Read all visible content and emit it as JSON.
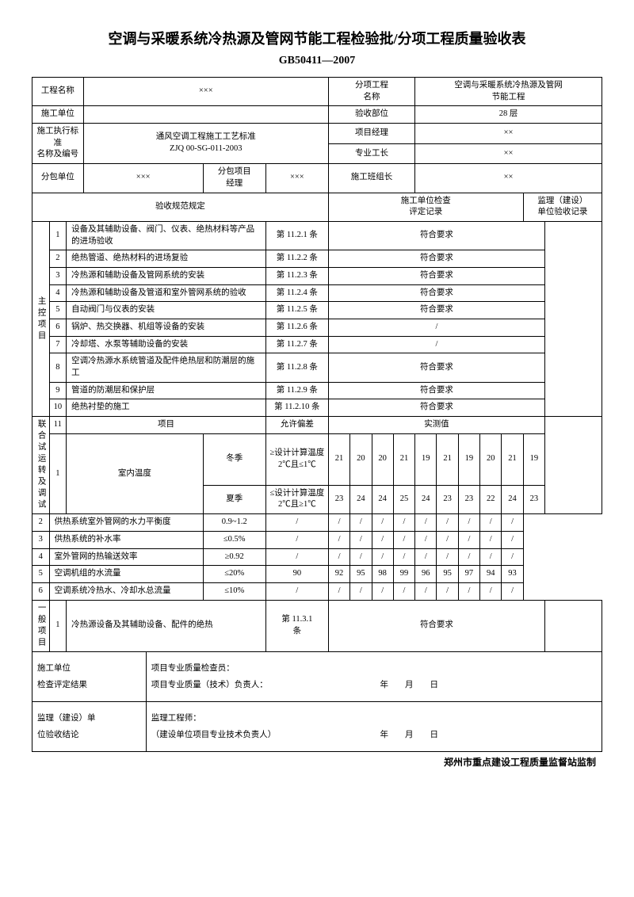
{
  "title": "空调与采暖系统冷热源及管网节能工程检验批/分项工程质量验收表",
  "subtitle": "GB50411—2007",
  "labels": {
    "projectName": "工程名称",
    "subProjectName": "分项工程\n名称",
    "subProjectVal": "空调与采暖系统冷热源及管网\n节能工程",
    "constructor": "施工单位",
    "acceptPart": "验收部位",
    "acceptPartVal": "28 层",
    "standard": "施工执行标准\n名称及编号",
    "standardVal": "通风空调工程施工工艺标准\nZJQ 00-SG-011-2003",
    "pm": "项目经理",
    "foreman": "专业工长",
    "subcontractor": "分包单位",
    "subPM": "分包项目\n经理",
    "teamLeader": "施工班组长",
    "specHeader": "验收规范规定",
    "selfCheck": "施工单位检查\n评定记录",
    "supervCheck": "监理（建设）\n单位验收记录",
    "mainItem": "主控项目",
    "genItem": "一般项目",
    "itemHdr": "项目",
    "tolHdr": "允许偏差",
    "measHdr": "实测值",
    "joint": "联合试运转及调试",
    "winter": "冬季",
    "summer": "夏季",
    "indoorTemp": "室内温度",
    "ok": "符合要求",
    "slash": "/",
    "resultLbl": "施工单位\n检查评定结果",
    "resultTxt": "项目专业质量检查员：\n项目专业质量（技术）负责人：　　　　　　　　　　　　　　年　　月　　日",
    "supervLbl": "监理（建设）单\n位验收结论",
    "supervTxt": "监理工程师：\n（建设单位项目专业技术负责人）　　　　　　　　　　　　　年　　月　　日",
    "footer": "郑州市重点建设工程质量监督站监制",
    "xxx": "×××",
    "xx": "××"
  },
  "rows": [
    {
      "n": "1",
      "desc": "设备及其辅助设备、阀门、仪表、绝热材料等产品的进场验收",
      "ref": "第 11.2.1 条",
      "res": "符合要求"
    },
    {
      "n": "2",
      "desc": "绝热管道、绝热材料的进场复验",
      "ref": "第 11.2.2 条",
      "res": "符合要求"
    },
    {
      "n": "3",
      "desc": "冷热源和辅助设备及管网系统的安装",
      "ref": "第 11.2.3 条",
      "res": "符合要求"
    },
    {
      "n": "4",
      "desc": "冷热源和辅助设备及管道和室外管网系统的验收",
      "ref": "第 11.2.4 条",
      "res": "符合要求"
    },
    {
      "n": "5",
      "desc": "自动阀门与仪表的安装",
      "ref": "第 11.2.5 条",
      "res": "符合要求"
    },
    {
      "n": "6",
      "desc": "锅炉、热交换器、机组等设备的安装",
      "ref": "第 11.2.6 条",
      "res": "/"
    },
    {
      "n": "7",
      "desc": "冷却塔、水泵等辅助设备的安装",
      "ref": "第 11.2.7 条",
      "res": "/"
    },
    {
      "n": "8",
      "desc": "空调冷热源水系统管道及配件绝热层和防潮层的施工",
      "ref": "第 11.2.8 条",
      "res": "符合要求"
    },
    {
      "n": "9",
      "desc": "管道的防潮层和保护层",
      "ref": "第 11.2.9 条",
      "res": "符合要求"
    },
    {
      "n": "10",
      "desc": "绝热衬垫的施工",
      "ref": "第 11.2.10 条",
      "res": "符合要求"
    }
  ],
  "winterTol": "≥设计计算温度 2℃且≤1℃",
  "winterVals": [
    "21",
    "20",
    "20",
    "21",
    "19",
    "21",
    "19",
    "20",
    "21",
    "19"
  ],
  "summerTol": "≤设计计算温度 2℃且≥1℃",
  "summerVals": [
    "23",
    "24",
    "24",
    "25",
    "24",
    "23",
    "23",
    "22",
    "24",
    "23"
  ],
  "measRows": [
    {
      "n": "2",
      "desc": "供热系统室外管网的水力平衡度",
      "tol": "0.9~1.2",
      "v": [
        "/",
        "/",
        "/",
        "/",
        "/",
        "/",
        "/",
        "/",
        "/",
        "/"
      ]
    },
    {
      "n": "3",
      "desc": "供热系统的补水率",
      "tol": "≤0.5%",
      "v": [
        "/",
        "/",
        "/",
        "/",
        "/",
        "/",
        "/",
        "/",
        "/",
        "/"
      ]
    },
    {
      "n": "4",
      "desc": "室外管网的热输送效率",
      "tol": "≥0.92",
      "v": [
        "/",
        "/",
        "/",
        "/",
        "/",
        "/",
        "/",
        "/",
        "/",
        "/"
      ]
    },
    {
      "n": "5",
      "desc": "空调机组的水流量",
      "tol": "≤20%",
      "v": [
        "90",
        "92",
        "95",
        "98",
        "99",
        "96",
        "95",
        "97",
        "94",
        "93"
      ]
    },
    {
      "n": "6",
      "desc": "空调系统冷热水、冷却水总流量",
      "tol": "≤10%",
      "v": [
        "/",
        "/",
        "/",
        "/",
        "/",
        "/",
        "/",
        "/",
        "/",
        "/"
      ]
    }
  ],
  "genRow": {
    "n": "1",
    "desc": "冷热源设备及其辅助设备、配件的绝热",
    "ref": "第 11.3.1\n条",
    "res": "符合要求"
  }
}
